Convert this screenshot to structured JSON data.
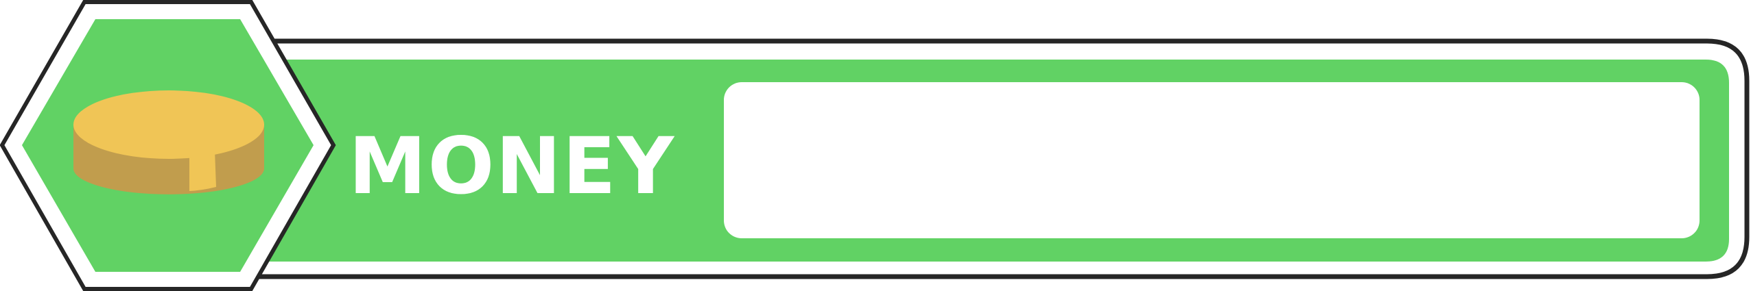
{
  "hud": {
    "label": "MONEY",
    "value": "",
    "icon": "coin-icon"
  },
  "colors": {
    "outline": "#262626",
    "panel_white": "#ffffff",
    "accent_green": "#61d264",
    "coin_top": "#f0c556",
    "coin_side": "#c19d4d",
    "coin_highlight": "#f0c556"
  }
}
